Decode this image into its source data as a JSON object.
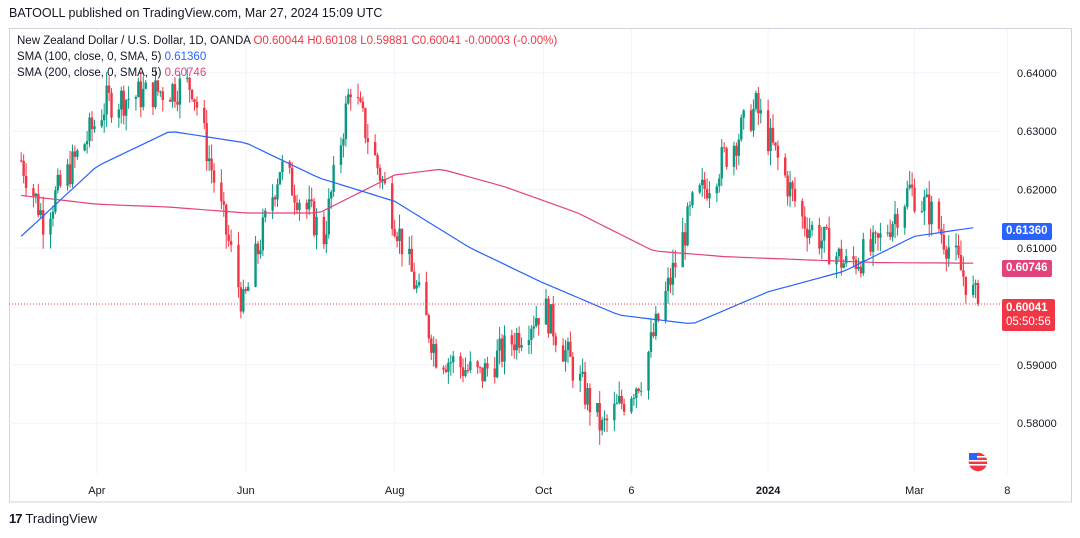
{
  "header": {
    "published": "BATOOLL published on TradingView.com, Mar 27, 2024 15:09 UTC"
  },
  "legend": {
    "symbol": "New Zealand Dollar / U.S. Dollar, 1D, OANDA",
    "open": "O0.60044",
    "high": "H0.60108",
    "low": "L0.59881",
    "close": "C0.60041",
    "change": "-0.00003 (-0.00%)",
    "sma100_label": "SMA (100, close, 0, SMA, 5)",
    "sma100_value": "0.61360",
    "sma200_label": "SMA (200, close, 0, SMA, 5)",
    "sma200_value": "0.60746"
  },
  "footer": {
    "logo": "17",
    "brand": "TradingView"
  },
  "price_tags": {
    "sma100": "0.61360",
    "sma200": "0.60746",
    "last_price": "0.60041",
    "countdown": "05:50:56"
  },
  "colors": {
    "up": "#089981",
    "down": "#f23645",
    "sma100": "#2962ff",
    "sma200": "#e2437d",
    "grid": "#f0f3fa",
    "last_line": "#f23645"
  },
  "chart_data": {
    "type": "candlestick",
    "title": "New Zealand Dollar / U.S. Dollar, 1D, OANDA",
    "y_ticks": [
      "0.64000",
      "0.63000",
      "0.62000",
      "0.61000",
      "0.59000",
      "0.58000"
    ],
    "ylim": [
      0.5713,
      0.6475
    ],
    "x_ticks": [
      "Apr",
      "Jun",
      "Aug",
      "Oct",
      "6",
      "2024",
      "Mar",
      "8"
    ],
    "last_price": 0.60041,
    "key_points": [
      {
        "date": "2023-03-01",
        "price": 0.625
      },
      {
        "date": "2023-03-10",
        "price": 0.615
      },
      {
        "date": "2023-04-05",
        "price": 0.635
      },
      {
        "date": "2023-05-10",
        "price": 0.638
      },
      {
        "date": "2023-05-31",
        "price": 0.6
      },
      {
        "date": "2023-06-15",
        "price": 0.624
      },
      {
        "date": "2023-07-03",
        "price": 0.612
      },
      {
        "date": "2023-07-14",
        "price": 0.638
      },
      {
        "date": "2023-08-01",
        "price": 0.615
      },
      {
        "date": "2023-08-18",
        "price": 0.592
      },
      {
        "date": "2023-09-05",
        "price": 0.588
      },
      {
        "date": "2023-10-01",
        "price": 0.6
      },
      {
        "date": "2023-10-25",
        "price": 0.579
      },
      {
        "date": "2023-11-10",
        "price": 0.588
      },
      {
        "date": "2023-12-01",
        "price": 0.617
      },
      {
        "date": "2023-12-27",
        "price": 0.634
      },
      {
        "date": "2024-01-15",
        "price": 0.615
      },
      {
        "date": "2024-02-02",
        "price": 0.607
      },
      {
        "date": "2024-02-14",
        "price": 0.61
      },
      {
        "date": "2024-02-28",
        "price": 0.62
      },
      {
        "date": "2024-03-08",
        "price": 0.616
      },
      {
        "date": "2024-03-27",
        "price": 0.6004
      }
    ],
    "sma100_points": [
      {
        "date": "2023-03-01",
        "value": 0.612
      },
      {
        "date": "2023-04-01",
        "value": 0.624
      },
      {
        "date": "2023-05-01",
        "value": 0.63
      },
      {
        "date": "2023-06-01",
        "value": 0.628
      },
      {
        "date": "2023-07-01",
        "value": 0.622
      },
      {
        "date": "2023-08-01",
        "value": 0.618
      },
      {
        "date": "2023-09-01",
        "value": 0.61
      },
      {
        "date": "2023-10-01",
        "value": 0.604
      },
      {
        "date": "2023-11-01",
        "value": 0.5985
      },
      {
        "date": "2023-12-01",
        "value": 0.597
      },
      {
        "date": "2024-01-01",
        "value": 0.6025
      },
      {
        "date": "2024-02-01",
        "value": 0.606
      },
      {
        "date": "2024-03-01",
        "value": 0.612
      },
      {
        "date": "2024-03-27",
        "value": 0.6136
      }
    ],
    "sma200_points": [
      {
        "date": "2023-03-01",
        "value": 0.619
      },
      {
        "date": "2023-04-01",
        "value": 0.6175
      },
      {
        "date": "2023-05-01",
        "value": 0.617
      },
      {
        "date": "2023-06-01",
        "value": 0.616
      },
      {
        "date": "2023-07-01",
        "value": 0.616
      },
      {
        "date": "2023-08-01",
        "value": 0.6225
      },
      {
        "date": "2023-08-20",
        "value": 0.6235
      },
      {
        "date": "2023-09-15",
        "value": 0.6205
      },
      {
        "date": "2023-10-15",
        "value": 0.616
      },
      {
        "date": "2023-11-15",
        "value": 0.6095
      },
      {
        "date": "2023-12-15",
        "value": 0.6085
      },
      {
        "date": "2024-01-15",
        "value": 0.608
      },
      {
        "date": "2024-02-15",
        "value": 0.6075
      },
      {
        "date": "2024-03-27",
        "value": 0.6074
      }
    ]
  }
}
